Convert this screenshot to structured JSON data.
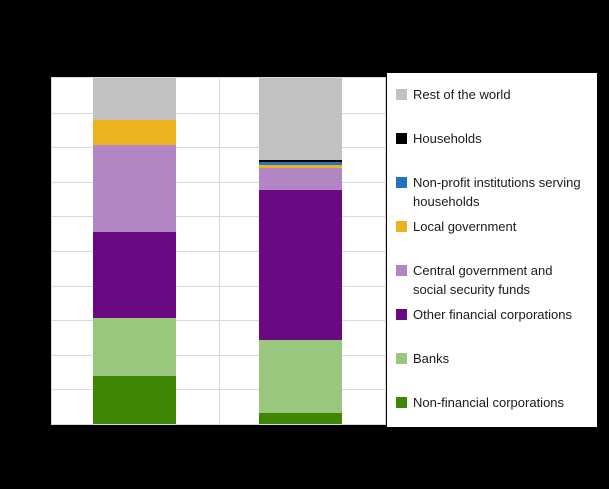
{
  "window": {
    "background": "#000000"
  },
  "colors": {
    "gray": "#c1c1c1",
    "black": "#000000",
    "blue": "#2274c0",
    "gold": "#ecb220",
    "light_purple": "#b286c4",
    "dark_purple": "#6a0a83",
    "light_green": "#99c77e",
    "dark_green": "#3d8705",
    "plot_bg": "#ffffff",
    "gridline": "#d9d9d9",
    "legend_bg": "#ffffff",
    "legend_text": "#1a1a1a"
  },
  "chart_data": {
    "type": "bar",
    "stacked": true,
    "unit": "percent",
    "title": "",
    "xlabel": "",
    "ylabel": "",
    "categories": [
      "",
      ""
    ],
    "ylim": [
      0,
      100
    ],
    "grid": {
      "y_divisions": 10,
      "x_divisions": 2,
      "on": true
    },
    "legend_position": "right",
    "stack_order": "bottom-to-top",
    "series": [
      {
        "name": "Non-financial corporations",
        "color_key": "dark_green",
        "values": [
          13.9,
          3.2
        ]
      },
      {
        "name": "Banks",
        "color_key": "light_green",
        "values": [
          16.6,
          21.1
        ]
      },
      {
        "name": "Other financial corporations",
        "color_key": "dark_purple",
        "values": [
          25.1,
          43.4
        ]
      },
      {
        "name": "Central government and social security funds",
        "color_key": "light_purple",
        "values": [
          25.1,
          6.2
        ]
      },
      {
        "name": "Local government",
        "color_key": "gold",
        "values": [
          7.3,
          0.9
        ]
      },
      {
        "name": "Non-profit institutions serving households",
        "color_key": "blue",
        "values": [
          0,
          1.0
        ]
      },
      {
        "name": "Households",
        "color_key": "black",
        "values": [
          0,
          0.6
        ]
      },
      {
        "name": "Rest of the world",
        "color_key": "gray",
        "values": [
          12.0,
          23.6
        ]
      }
    ]
  },
  "legend": {
    "items": [
      {
        "label": "Rest of the world",
        "lines": [
          "Rest of the world"
        ],
        "color_key": "gray"
      },
      {
        "label": "Households",
        "lines": [
          "Households"
        ],
        "color_key": "black"
      },
      {
        "label": "Non-profit institutions serving households",
        "lines": [
          "Non-profit institutions serving",
          "households"
        ],
        "color_key": "blue"
      },
      {
        "label": "Local government",
        "lines": [
          "Local government"
        ],
        "color_key": "gold"
      },
      {
        "label": "Central government and social security funds",
        "lines": [
          "Central government and",
          "social security funds"
        ],
        "color_key": "light_purple"
      },
      {
        "label": "Other financial corporations",
        "lines": [
          "Other financial corporations"
        ],
        "color_key": "dark_purple"
      },
      {
        "label": "Banks",
        "lines": [
          "Banks"
        ],
        "color_key": "light_green"
      },
      {
        "label": "Non-financial corporations",
        "lines": [
          "Non-financial corporations"
        ],
        "color_key": "dark_green"
      }
    ]
  }
}
